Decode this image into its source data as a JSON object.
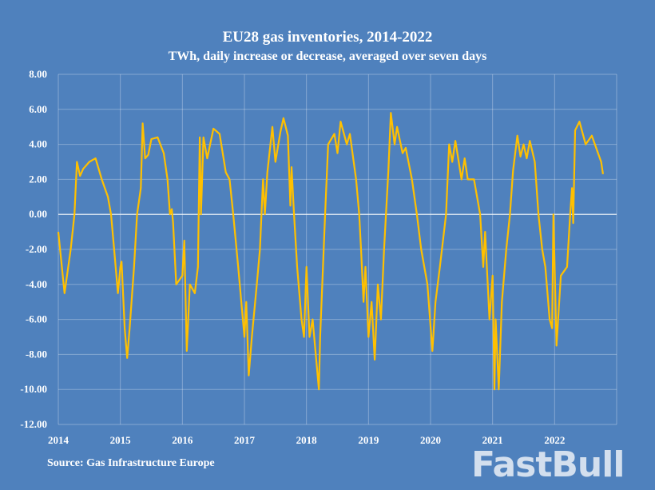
{
  "chart_data": {
    "type": "line",
    "title": "EU28 gas inventories, 2014-2022",
    "subtitle": "TWh, daily increase or decrease, averaged over seven days",
    "source": "Source: Gas Infrastructure Europe",
    "xlabel": "",
    "ylabel": "",
    "xlim": [
      2014,
      2023
    ],
    "ylim": [
      -12,
      8
    ],
    "x_ticks": [
      "2014",
      "2015",
      "2016",
      "2017",
      "2018",
      "2019",
      "2020",
      "2021",
      "2022"
    ],
    "y_ticks": [
      "8.00",
      "6.00",
      "4.00",
      "2.00",
      "0.00",
      "-2.00",
      "-4.00",
      "-6.00",
      "-8.00",
      "-10.00",
      "-12.00"
    ],
    "grid": true,
    "legend": "none",
    "line_color": "#ffc000",
    "series": [
      {
        "x": [
          2014.0,
          2014.1,
          2014.2,
          2014.26,
          2014.3,
          2014.35,
          2014.4,
          2014.5,
          2014.6,
          2014.7,
          2014.8,
          2014.85,
          2014.9,
          2014.96,
          2015.0,
          2015.02,
          2015.07,
          2015.11,
          2015.15,
          2015.22,
          2015.27,
          2015.33,
          2015.36,
          2015.4,
          2015.45,
          2015.5,
          2015.6,
          2015.7,
          2015.76,
          2015.8,
          2015.83,
          2015.85,
          2015.9,
          2016.0,
          2016.03,
          2016.07,
          2016.12,
          2016.2,
          2016.25,
          2016.28,
          2016.3,
          2016.34,
          2016.4,
          2016.5,
          2016.6,
          2016.7,
          2016.76,
          2016.82,
          2016.9,
          2016.95,
          2017.0,
          2017.03,
          2017.07,
          2017.12,
          2017.2,
          2017.25,
          2017.3,
          2017.33,
          2017.37,
          2017.45,
          2017.5,
          2017.58,
          2017.63,
          2017.7,
          2017.74,
          2017.76,
          2017.8,
          2017.85,
          2017.92,
          2017.96,
          2018.0,
          2018.05,
          2018.1,
          2018.2,
          2018.22,
          2018.3,
          2018.35,
          2018.45,
          2018.5,
          2018.55,
          2018.65,
          2018.7,
          2018.8,
          2018.85,
          2018.88,
          2018.92,
          2018.95,
          2019.0,
          2019.05,
          2019.1,
          2019.15,
          2019.2,
          2019.25,
          2019.32,
          2019.36,
          2019.42,
          2019.46,
          2019.55,
          2019.6,
          2019.7,
          2019.78,
          2019.85,
          2019.9,
          2019.95,
          2020.03,
          2020.08,
          2020.15,
          2020.25,
          2020.3,
          2020.35,
          2020.4,
          2020.5,
          2020.55,
          2020.6,
          2020.7,
          2020.8,
          2020.85,
          2020.88,
          2020.95,
          2021.0,
          2021.03,
          2021.05,
          2021.1,
          2021.15,
          2021.22,
          2021.28,
          2021.33,
          2021.4,
          2021.45,
          2021.5,
          2021.55,
          2021.6,
          2021.68,
          2021.74,
          2021.8,
          2021.85,
          2021.92,
          2021.96,
          2021.98,
          2022.03,
          2022.1,
          2022.2,
          2022.25,
          2022.28,
          2022.3,
          2022.33,
          2022.4,
          2022.5,
          2022.6,
          2022.7,
          2022.75,
          2022.78
        ],
        "y": [
          -1,
          -4.5,
          -2,
          0,
          3,
          2.2,
          2.6,
          3,
          3.2,
          2,
          1,
          0,
          -2,
          -4.5,
          -3,
          -2.7,
          -6.5,
          -8.2,
          -6.5,
          -3,
          0,
          1.5,
          5.2,
          3.2,
          3.4,
          4.3,
          4.4,
          3.5,
          2,
          0,
          0.3,
          -0.5,
          -4,
          -3.5,
          -1.5,
          -7.8,
          -4,
          -4.5,
          -3,
          4.4,
          0,
          4.4,
          3.2,
          4.9,
          4.6,
          2.4,
          2,
          0,
          -3,
          -5,
          -7,
          -5,
          -9.2,
          -7,
          -4,
          -2,
          2,
          0,
          2.4,
          5,
          3,
          4.7,
          5.5,
          4.5,
          0.5,
          2.7,
          0,
          -3,
          -6,
          -7,
          -3,
          -7,
          -6,
          -10,
          -7,
          0,
          4,
          4.6,
          3.5,
          5.3,
          4,
          4.6,
          2,
          0,
          -2,
          -5,
          -3,
          -7,
          -5,
          -8.3,
          -4,
          -6,
          -2,
          2.5,
          5.8,
          4,
          5,
          3.5,
          3.8,
          2,
          0,
          -2,
          -3,
          -4,
          -7.8,
          -5,
          -3,
          0,
          4,
          3,
          4.2,
          2,
          3.2,
          2,
          2,
          0,
          -3,
          -1,
          -6,
          -3.5,
          -10,
          -6,
          -10,
          -5,
          -2,
          0,
          2.5,
          4.5,
          3.3,
          4,
          3.2,
          4.2,
          3,
          0,
          -2,
          -3,
          -6,
          -6.5,
          0,
          -7.5,
          -3.5,
          -3,
          0,
          1.5,
          -0.5,
          4.8,
          5.3,
          4,
          4.5,
          3.5,
          3,
          2.3
        ]
      }
    ]
  },
  "watermark": "FastBull"
}
